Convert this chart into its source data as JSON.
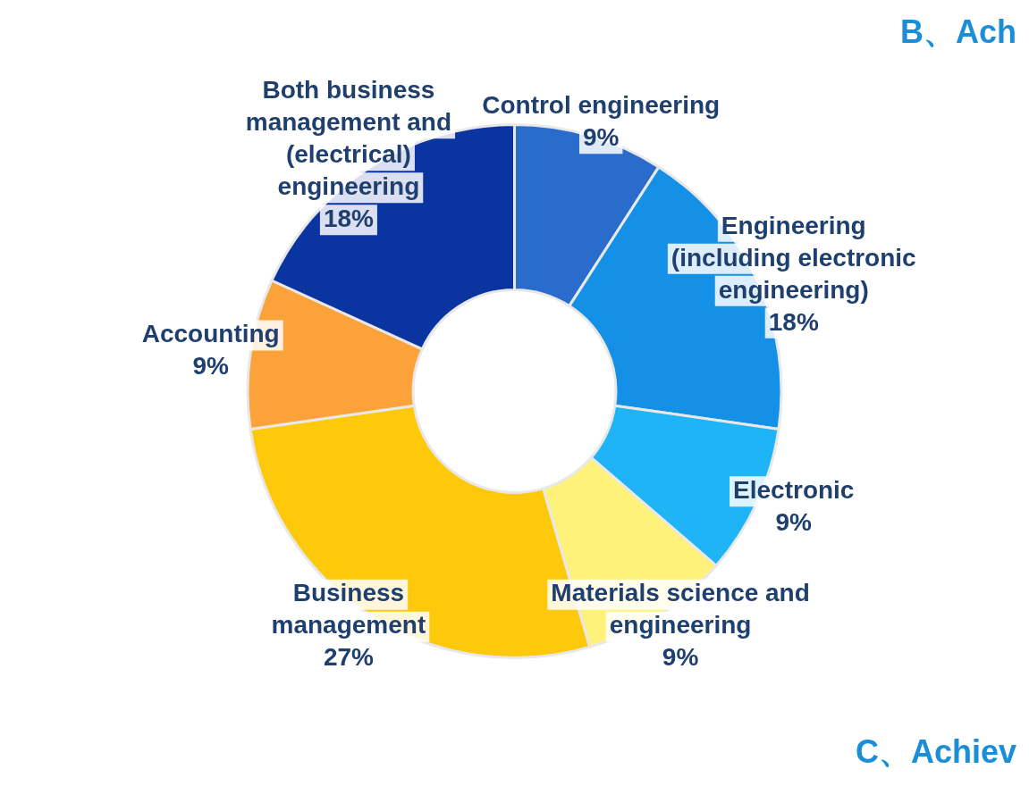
{
  "chart_data": {
    "type": "donut",
    "categories": [
      "Control engineering",
      "Engineering (including electronic engineering)",
      "Electronic",
      "Materials science and engineering",
      "Business management",
      "Accounting",
      "Both business management and (electrical) engineering"
    ],
    "values": [
      9,
      18,
      9,
      9,
      27,
      9,
      18
    ],
    "value_labels": [
      "9%",
      "18%",
      "9%",
      "9%",
      "27%",
      "9%",
      "18%"
    ],
    "colors": [
      "#2a6ccc",
      "#1490e6",
      "#1fb4f5",
      "#fff27a",
      "#fdc90a",
      "#fba23a",
      "#0a34a0"
    ],
    "legend": false,
    "annotations": [
      "B、Ach",
      "C、Achiev"
    ]
  }
}
